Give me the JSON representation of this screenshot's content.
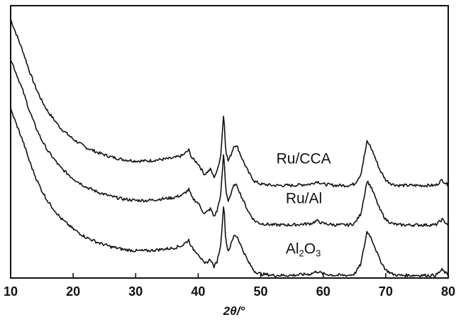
{
  "chart_data": {
    "type": "line",
    "title": "",
    "xlabel": "2θ/°",
    "ylabel": "",
    "xlim": [
      10,
      80
    ],
    "ylim": [
      0,
      100
    ],
    "x_ticks": [
      10,
      20,
      30,
      40,
      50,
      60,
      70,
      80
    ],
    "y_ticks_shown": false,
    "grid": false,
    "legend": "labels placed next to curves, right side",
    "profile": {
      "x": [
        10,
        11,
        12,
        13,
        14,
        15,
        16,
        18,
        20,
        22,
        24,
        26,
        28,
        30,
        32,
        34,
        36,
        37.5,
        38.5,
        39,
        40,
        41,
        42,
        42.5,
        43,
        43.6,
        44.1,
        44.4,
        44.8,
        45.2,
        45.8,
        46.3,
        47,
        48,
        49,
        50,
        52,
        55,
        58,
        59,
        60,
        62,
        64,
        65,
        66,
        66.6,
        67,
        67.4,
        68,
        69,
        70,
        71,
        72,
        74,
        76,
        78,
        79,
        79.5,
        80
      ],
      "y": [
        62,
        56,
        50,
        43,
        37,
        32,
        28,
        22,
        18,
        15,
        13,
        11.5,
        10.5,
        10,
        10,
        10.5,
        11,
        12,
        14,
        11,
        9,
        5,
        7,
        4,
        6,
        12,
        28,
        14,
        10,
        12,
        16,
        15,
        11,
        6,
        2.5,
        1.5,
        1,
        1,
        1.5,
        2.5,
        1.5,
        1,
        1,
        1.5,
        5,
        12,
        17,
        16,
        13,
        7,
        3,
        1.5,
        1,
        1,
        1,
        1,
        3,
        2,
        1
      ]
    },
    "series": [
      {
        "name": "Ru/CCA",
        "offset": 33,
        "label_x": 52.5
      },
      {
        "name": "Ru/Al",
        "offset": 18.5,
        "label_x": 54
      },
      {
        "name": "Al2O3",
        "offset": 0,
        "label_x": 54
      }
    ],
    "label_text": {
      "Ru/CCA": "Ru/CCA",
      "Ru/Al": "Ru/Al",
      "Al2O3_main": "Al",
      "Al2O3_sub1": "2",
      "Al2O3_mid": "O",
      "Al2O3_sub2": "3"
    }
  }
}
